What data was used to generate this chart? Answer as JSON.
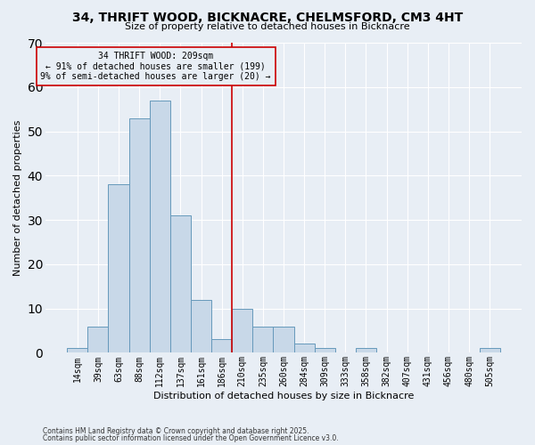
{
  "title": "34, THRIFT WOOD, BICKNACRE, CHELMSFORD, CM3 4HT",
  "subtitle": "Size of property relative to detached houses in Bicknacre",
  "xlabel": "Distribution of detached houses by size in Bicknacre",
  "ylabel": "Number of detached properties",
  "categories": [
    "14sqm",
    "39sqm",
    "63sqm",
    "88sqm",
    "112sqm",
    "137sqm",
    "161sqm",
    "186sqm",
    "210sqm",
    "235sqm",
    "260sqm",
    "284sqm",
    "309sqm",
    "333sqm",
    "358sqm",
    "382sqm",
    "407sqm",
    "431sqm",
    "456sqm",
    "480sqm",
    "505sqm"
  ],
  "values": [
    1,
    6,
    38,
    53,
    57,
    31,
    12,
    3,
    10,
    6,
    6,
    2,
    1,
    0,
    1,
    0,
    0,
    0,
    0,
    0,
    1
  ],
  "bar_color": "#c8d8e8",
  "bar_edge_color": "#6699bb",
  "vline_color": "#cc0000",
  "vline_index": 8,
  "annotation_title": "34 THRIFT WOOD: 209sqm",
  "annotation_line1": "← 91% of detached houses are smaller (199)",
  "annotation_line2": "9% of semi-detached houses are larger (20) →",
  "annotation_box_color": "#cc0000",
  "ylim": [
    0,
    70
  ],
  "yticks": [
    0,
    10,
    20,
    30,
    40,
    50,
    60,
    70
  ],
  "footer1": "Contains HM Land Registry data © Crown copyright and database right 2025.",
  "footer2": "Contains public sector information licensed under the Open Government Licence v3.0.",
  "background_color": "#e8eef5",
  "grid_color": "#ffffff",
  "title_fontsize": 10,
  "subtitle_fontsize": 8,
  "ylabel_fontsize": 8,
  "xlabel_fontsize": 8,
  "tick_fontsize": 7,
  "ann_fontsize": 7,
  "footer_fontsize": 5.5
}
